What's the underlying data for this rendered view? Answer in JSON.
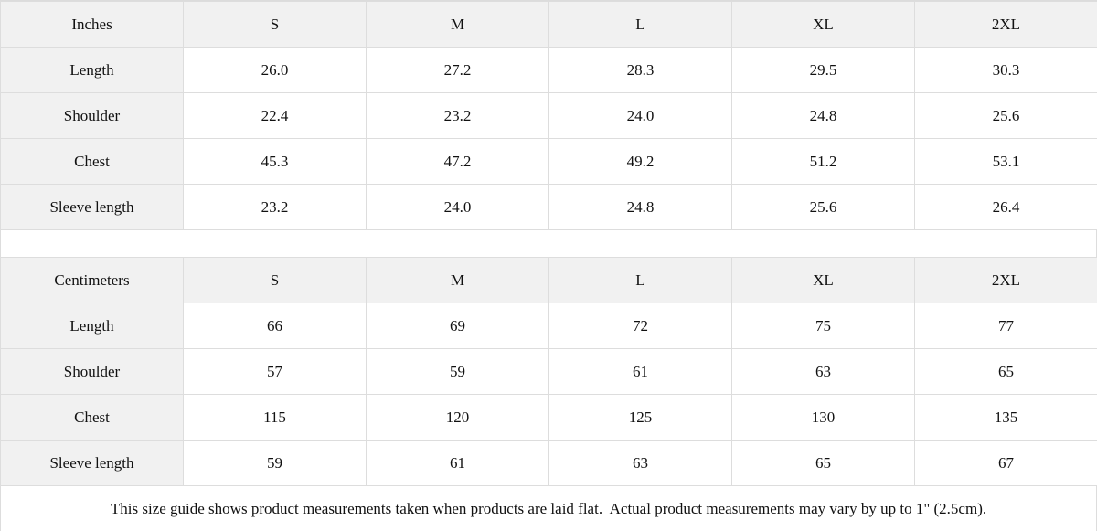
{
  "colors": {
    "header_background": "#f1f1f1",
    "cell_background": "#ffffff",
    "border": "#dddddd",
    "text": "#111111"
  },
  "chart_data": [
    {
      "type": "table",
      "title": "Inches",
      "columns": [
        "Inches",
        "S",
        "M",
        "L",
        "XL",
        "2XL"
      ],
      "rows": [
        [
          "Length",
          "26.0",
          "27.2",
          "28.3",
          "29.5",
          "30.3"
        ],
        [
          "Shoulder",
          "22.4",
          "23.2",
          "24.0",
          "24.8",
          "25.6"
        ],
        [
          "Chest",
          "45.3",
          "47.2",
          "49.2",
          "51.2",
          "53.1"
        ],
        [
          "Sleeve length",
          "23.2",
          "24.0",
          "24.8",
          "25.6",
          "26.4"
        ]
      ]
    },
    {
      "type": "table",
      "title": "Centimeters",
      "columns": [
        "Centimeters",
        "S",
        "M",
        "L",
        "XL",
        "2XL"
      ],
      "rows": [
        [
          "Length",
          "66",
          "69",
          "72",
          "75",
          "77"
        ],
        [
          "Shoulder",
          "57",
          "59",
          "61",
          "63",
          "65"
        ],
        [
          "Chest",
          "115",
          "120",
          "125",
          "130",
          "135"
        ],
        [
          "Sleeve length",
          "59",
          "61",
          "63",
          "65",
          "67"
        ]
      ]
    }
  ],
  "note": "This size guide shows product measurements taken when products are laid flat.  Actual product measurements may vary by up to 1\" (2.5cm)."
}
